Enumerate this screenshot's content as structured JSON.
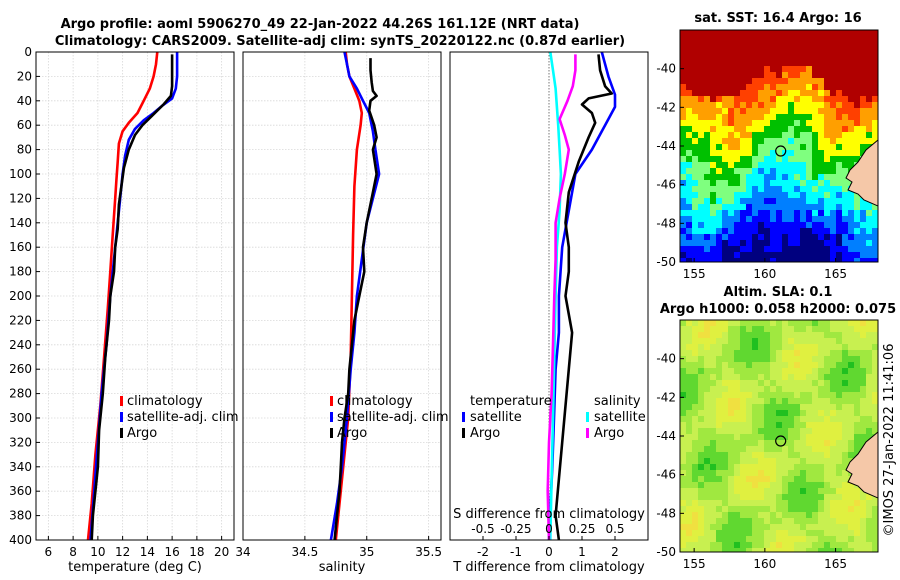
{
  "title_line1": "Argo profile: aoml 5906270_49 22-Jan-2022 44.26S 161.12E (NRT data)",
  "title_line2": "Climatology: CARS2009. Satellite-adj clim: synTS_20220122.nc (0.87d earlier)",
  "sst_title": "sat. SST: 16.4 Argo: 16",
  "sla_title1": "Altim. SLA: 0.1",
  "sla_title2": "Argo h1000: 0.058 h2000: 0.075",
  "stamp": "©IMOS 27-Jan-2022 11:41:06",
  "colors": {
    "climatology": "#ff0000",
    "satellite": "#0000ff",
    "argo": "#000000",
    "s_satellite": "#00ffff",
    "s_argo": "#ff00ff",
    "land": "#f5c8a8"
  },
  "chart_data": [
    {
      "type": "line",
      "title": "",
      "xlabel": "temperature (deg C)",
      "ylabel": "",
      "xlim": [
        5,
        21
      ],
      "ylim": [
        400,
        0
      ],
      "x_ticks": [
        6,
        8,
        10,
        12,
        14,
        16,
        18,
        20
      ],
      "y_ticks": [
        0,
        20,
        40,
        60,
        80,
        100,
        120,
        140,
        160,
        180,
        200,
        220,
        240,
        260,
        280,
        300,
        320,
        340,
        360,
        380,
        400
      ],
      "legend": [
        "climatology",
        "satellite-adj. clim",
        "Argo"
      ],
      "legend_position": "lower-right",
      "series": [
        {
          "name": "climatology",
          "color_key": "climatology",
          "points": [
            [
              14.8,
              0
            ],
            [
              14.7,
              10
            ],
            [
              14.5,
              20
            ],
            [
              14.2,
              30
            ],
            [
              13.7,
              40
            ],
            [
              13.2,
              50
            ],
            [
              12.5,
              58
            ],
            [
              12.0,
              65
            ],
            [
              11.7,
              75
            ],
            [
              11.6,
              90
            ],
            [
              11.5,
              105
            ],
            [
              11.4,
              120
            ],
            [
              11.2,
              150
            ],
            [
              11.0,
              180
            ],
            [
              10.8,
              210
            ],
            [
              10.5,
              250
            ],
            [
              10.2,
              290
            ],
            [
              9.8,
              330
            ],
            [
              9.5,
              370
            ],
            [
              9.2,
              400
            ]
          ]
        },
        {
          "name": "satellite-adj. clim",
          "color_key": "satellite",
          "points": [
            [
              16.4,
              0
            ],
            [
              16.4,
              10
            ],
            [
              16.4,
              20
            ],
            [
              16.3,
              30
            ],
            [
              16.0,
              38
            ],
            [
              15.2,
              44
            ],
            [
              14.5,
              50
            ],
            [
              13.7,
              56
            ],
            [
              13.0,
              63
            ],
            [
              12.5,
              72
            ],
            [
              12.2,
              85
            ],
            [
              12.0,
              100
            ],
            [
              11.8,
              120
            ],
            [
              11.6,
              140
            ],
            [
              11.3,
              170
            ],
            [
              11.0,
              200
            ],
            [
              10.7,
              240
            ],
            [
              10.3,
              280
            ],
            [
              10.0,
              320
            ],
            [
              9.7,
              360
            ],
            [
              9.4,
              400
            ]
          ]
        },
        {
          "name": "Argo",
          "color_key": "argo",
          "points": [
            [
              16.0,
              2
            ],
            [
              16.0,
              15
            ],
            [
              16.0,
              28
            ],
            [
              15.9,
              36
            ],
            [
              15.3,
              43
            ],
            [
              14.8,
              48
            ],
            [
              14.3,
              53
            ],
            [
              13.6,
              60
            ],
            [
              13.0,
              68
            ],
            [
              12.5,
              80
            ],
            [
              12.1,
              95
            ],
            [
              11.9,
              110
            ],
            [
              11.7,
              125
            ],
            [
              11.6,
              145
            ],
            [
              11.4,
              160
            ],
            [
              11.3,
              180
            ],
            [
              11.0,
              200
            ],
            [
              10.9,
              220
            ],
            [
              10.6,
              250
            ],
            [
              10.4,
              280
            ],
            [
              10.1,
              310
            ],
            [
              10.0,
              340
            ],
            [
              9.8,
              360
            ],
            [
              9.6,
              380
            ],
            [
              9.5,
              400
            ]
          ]
        }
      ]
    },
    {
      "type": "line",
      "title": "",
      "xlabel": "salinity",
      "ylabel": "",
      "xlim": [
        34,
        35.6
      ],
      "ylim": [
        400,
        0
      ],
      "x_ticks": [
        34,
        34.5,
        35,
        35.5
      ],
      "y_ticks": [],
      "legend": [
        "climatology",
        "satellite-adj. clim",
        "Argo"
      ],
      "legend_position": "lower-right",
      "series": [
        {
          "name": "climatology",
          "color_key": "climatology",
          "points": [
            [
              34.83,
              0
            ],
            [
              34.84,
              10
            ],
            [
              34.86,
              20
            ],
            [
              34.9,
              30
            ],
            [
              34.94,
              40
            ],
            [
              34.96,
              50
            ],
            [
              34.95,
              60
            ],
            [
              34.92,
              80
            ],
            [
              34.9,
              110
            ],
            [
              34.89,
              150
            ],
            [
              34.88,
              200
            ],
            [
              34.87,
              250
            ],
            [
              34.85,
              300
            ],
            [
              34.8,
              350
            ],
            [
              34.75,
              400
            ]
          ]
        },
        {
          "name": "satellite-adj. clim",
          "color_key": "satellite",
          "points": [
            [
              34.82,
              0
            ],
            [
              34.84,
              10
            ],
            [
              34.86,
              20
            ],
            [
              34.92,
              30
            ],
            [
              34.97,
              40
            ],
            [
              35.02,
              50
            ],
            [
              35.05,
              65
            ],
            [
              35.07,
              80
            ],
            [
              35.1,
              100
            ],
            [
              35.05,
              120
            ],
            [
              35.0,
              140
            ],
            [
              34.96,
              170
            ],
            [
              34.92,
              200
            ],
            [
              34.9,
              230
            ],
            [
              34.87,
              260
            ],
            [
              34.84,
              300
            ],
            [
              34.8,
              340
            ],
            [
              34.76,
              370
            ],
            [
              34.71,
              400
            ]
          ]
        },
        {
          "name": "Argo",
          "color_key": "argo",
          "points": [
            [
              35.03,
              5
            ],
            [
              35.03,
              15
            ],
            [
              35.04,
              25
            ],
            [
              35.05,
              32
            ],
            [
              35.08,
              36
            ],
            [
              35.03,
              40
            ],
            [
              35.02,
              48
            ],
            [
              35.06,
              60
            ],
            [
              35.08,
              70
            ],
            [
              35.05,
              80
            ],
            [
              35.08,
              100
            ],
            [
              35.04,
              120
            ],
            [
              35.0,
              140
            ],
            [
              34.97,
              160
            ],
            [
              34.98,
              180
            ],
            [
              34.94,
              200
            ],
            [
              34.9,
              220
            ],
            [
              34.88,
              240
            ],
            [
              34.86,
              260
            ],
            [
              34.85,
              280
            ],
            [
              34.82,
              300
            ],
            [
              34.8,
              320
            ],
            [
              34.79,
              340
            ],
            [
              34.78,
              360
            ],
            [
              34.76,
              380
            ],
            [
              34.74,
              400
            ]
          ]
        }
      ]
    },
    {
      "type": "line",
      "title": "",
      "xlabel": "T difference from climatology",
      "x2label": "S difference from climatology",
      "ylabel": "",
      "xlim": [
        -3,
        3
      ],
      "ylim": [
        400,
        0
      ],
      "x_ticks": [
        -2,
        -1,
        0,
        1,
        2
      ],
      "x_tick_labels": [
        "-2",
        "-1",
        "0",
        "1",
        "2"
      ],
      "x2_ticks": [
        -0.5,
        -0.25,
        0,
        0.25,
        0.5
      ],
      "x2_tick_labels": [
        "-0.5",
        "-0.25",
        "0",
        "0.25",
        "0.5"
      ],
      "x2lim": [
        -0.75,
        0.75
      ],
      "y_ticks": [],
      "legend_t_title": "temperature",
      "legend_s_title": "salinity",
      "legend_t": [
        "satellite",
        "Argo"
      ],
      "legend_s": [
        "satellite",
        "Argo"
      ],
      "series": [
        {
          "name": "T satellite",
          "color_key": "satellite",
          "axis": "T",
          "points": [
            [
              1.6,
              0
            ],
            [
              1.7,
              10
            ],
            [
              1.8,
              20
            ],
            [
              2.0,
              35
            ],
            [
              2.0,
              45
            ],
            [
              1.7,
              60
            ],
            [
              1.3,
              80
            ],
            [
              0.8,
              100
            ],
            [
              0.6,
              130
            ],
            [
              0.4,
              160
            ],
            [
              0.3,
              200
            ],
            [
              0.3,
              230
            ],
            [
              0.2,
              260
            ],
            [
              0.15,
              300
            ],
            [
              0.1,
              340
            ],
            [
              0.05,
              370
            ],
            [
              0.0,
              400
            ]
          ]
        },
        {
          "name": "T Argo",
          "color_key": "argo",
          "axis": "T",
          "points": [
            [
              1.5,
              2
            ],
            [
              1.55,
              15
            ],
            [
              1.7,
              28
            ],
            [
              1.9,
              34
            ],
            [
              1.2,
              38
            ],
            [
              1.0,
              43
            ],
            [
              1.3,
              50
            ],
            [
              1.4,
              58
            ],
            [
              1.2,
              70
            ],
            [
              0.9,
              90
            ],
            [
              0.6,
              115
            ],
            [
              0.5,
              140
            ],
            [
              0.6,
              160
            ],
            [
              0.6,
              180
            ],
            [
              0.5,
              200
            ],
            [
              0.7,
              230
            ],
            [
              0.6,
              260
            ],
            [
              0.5,
              290
            ],
            [
              0.4,
              320
            ],
            [
              0.3,
              350
            ],
            [
              0.2,
              380
            ],
            [
              0.3,
              400
            ]
          ]
        },
        {
          "name": "S satellite",
          "color_key": "s_satellite",
          "axis": "S",
          "points": [
            [
              0.01,
              0
            ],
            [
              0.03,
              15
            ],
            [
              0.05,
              30
            ],
            [
              0.06,
              45
            ],
            [
              0.07,
              60
            ],
            [
              0.08,
              80
            ],
            [
              0.09,
              100
            ],
            [
              0.08,
              130
            ],
            [
              0.06,
              160
            ],
            [
              0.05,
              200
            ],
            [
              0.04,
              250
            ],
            [
              0.03,
              300
            ],
            [
              0.02,
              350
            ],
            [
              0.01,
              400
            ]
          ]
        },
        {
          "name": "S Argo",
          "color_key": "s_argo",
          "axis": "S",
          "points": [
            [
              0.2,
              2
            ],
            [
              0.2,
              15
            ],
            [
              0.18,
              28
            ],
            [
              0.14,
              40
            ],
            [
              0.08,
              55
            ],
            [
              0.12,
              68
            ],
            [
              0.15,
              80
            ],
            [
              0.12,
              100
            ],
            [
              0.08,
              120
            ],
            [
              0.05,
              140
            ],
            [
              0.05,
              170
            ],
            [
              0.04,
              200
            ],
            [
              0.03,
              240
            ],
            [
              0.02,
              280
            ],
            [
              0.0,
              320
            ],
            [
              -0.01,
              360
            ],
            [
              0.0,
              400
            ]
          ]
        }
      ]
    },
    {
      "type": "heatmap",
      "title": "sat. SST: 16.4 Argo: 16",
      "xlim": [
        154,
        168
      ],
      "ylim": [
        -50,
        -38
      ],
      "x_ticks": [
        155,
        160,
        165
      ],
      "y_ticks": [
        -40,
        -42,
        -44,
        -46,
        -48,
        -50
      ],
      "argo_marker": {
        "lon": 161.12,
        "lat": -44.26
      }
    },
    {
      "type": "heatmap",
      "title": "Altim. SLA: 0.1",
      "xlim": [
        154,
        168
      ],
      "ylim": [
        -50,
        -38
      ],
      "x_ticks": [
        155,
        160,
        165
      ],
      "y_ticks": [
        -40,
        -42,
        -44,
        -46,
        -48,
        -50
      ],
      "argo_marker": {
        "lon": 161.12,
        "lat": -44.26
      }
    }
  ]
}
